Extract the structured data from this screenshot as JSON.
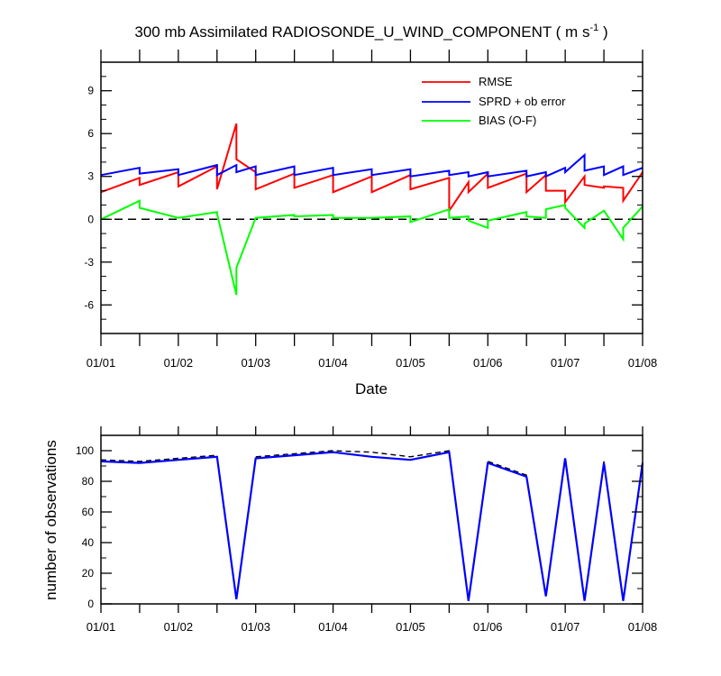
{
  "colors": {
    "rmse": "#ff0000",
    "sprd": "#0000ff",
    "bias": "#00ff00",
    "zero_line": "#000000",
    "obs_total": "#000000",
    "obs_assim": "#0000ff"
  },
  "chart_data": [
    {
      "type": "line",
      "title_main": "300 mb Assimilated RADIOSONDE_U_WIND_COMPONENT ( m s",
      "title_sup": "-1",
      "title_end": " )",
      "xlabel": "Date",
      "ylabel": "",
      "xlim": [
        0,
        7
      ],
      "ylim": [
        -8,
        11
      ],
      "yticks": [
        -6,
        -3,
        0,
        3,
        6,
        9
      ],
      "ytick_labels": [
        "-6",
        "-3",
        "0",
        "3",
        "6",
        "9"
      ],
      "xticks": [
        0,
        1,
        2,
        3,
        4,
        5,
        6,
        7
      ],
      "xtick_labels": [
        "01/01",
        "01/02",
        "01/03",
        "01/04",
        "01/05",
        "01/06",
        "01/07",
        "01/08"
      ],
      "grid": false,
      "legend": "top-right",
      "series": [
        {
          "name": "RMSE",
          "x": [
            0,
            0.5,
            0.5,
            1,
            1,
            1.5,
            1.5,
            1.75,
            1.75,
            2,
            2,
            2.5,
            2.5,
            3,
            3,
            3.5,
            3.5,
            4,
            4,
            4.5,
            4.5,
            4.75,
            4.75,
            5,
            5,
            5.5,
            5.5,
            5.75,
            5.75,
            6,
            6,
            6.25,
            6.25,
            6.5,
            6.5,
            6.75,
            6.75,
            7
          ],
          "y": [
            1.9,
            2.9,
            2.4,
            3.3,
            2.3,
            3.7,
            2.1,
            6.7,
            4.2,
            3.3,
            2.1,
            3.2,
            2.2,
            3.1,
            1.9,
            3.0,
            1.9,
            3.1,
            2.1,
            2.9,
            0.6,
            2.6,
            1.9,
            3.2,
            2.2,
            3.2,
            1.9,
            3.1,
            2.0,
            2.0,
            1.2,
            3.0,
            2.4,
            2.2,
            2.3,
            2.2,
            1.3,
            3.3
          ]
        },
        {
          "name": "SPRD + ob error",
          "x": [
            0,
            0.5,
            0.5,
            1,
            1,
            1.5,
            1.5,
            1.75,
            1.75,
            2,
            2,
            2.5,
            2.5,
            3,
            3,
            3.5,
            3.5,
            4,
            4,
            4.5,
            4.5,
            4.75,
            4.75,
            5,
            5,
            5.5,
            5.5,
            5.75,
            5.75,
            6,
            6,
            6.25,
            6.25,
            6.5,
            6.5,
            6.75,
            6.75,
            7
          ],
          "y": [
            3.1,
            3.6,
            3.2,
            3.5,
            3.1,
            3.8,
            3.1,
            3.8,
            3.3,
            3.7,
            3.1,
            3.7,
            3.1,
            3.6,
            3.1,
            3.5,
            3.1,
            3.5,
            3.0,
            3.4,
            3.1,
            3.3,
            3.0,
            3.3,
            3.0,
            3.4,
            3.0,
            3.3,
            3.0,
            3.6,
            3.3,
            4.5,
            3.4,
            3.7,
            3.1,
            3.7,
            3.1,
            3.6
          ]
        },
        {
          "name": "BIAS (O-F)",
          "x": [
            0,
            0.5,
            0.5,
            1,
            1,
            1.5,
            1.5,
            1.75,
            1.75,
            2,
            2,
            2.5,
            2.5,
            3,
            3,
            3.5,
            3.5,
            4,
            4,
            4.5,
            4.5,
            4.75,
            4.75,
            5,
            5,
            5.5,
            5.5,
            5.75,
            5.75,
            6,
            6,
            6.25,
            6.25,
            6.5,
            6.5,
            6.75,
            6.75,
            7
          ],
          "y": [
            0.0,
            1.3,
            0.8,
            0.1,
            0.1,
            0.5,
            0.4,
            -5.3,
            -3.4,
            0.1,
            0.1,
            0.3,
            0.2,
            0.3,
            0.1,
            0.1,
            0.1,
            0.2,
            -0.2,
            0.7,
            0.1,
            0.2,
            -0.1,
            -0.6,
            -0.1,
            0.5,
            0.2,
            0.1,
            0.7,
            1.0,
            0.8,
            -0.6,
            -0.3,
            0.6,
            0.6,
            -1.4,
            -0.6,
            0.9
          ]
        }
      ]
    },
    {
      "type": "line",
      "title": "",
      "xlabel": "",
      "ylabel": "number of observations",
      "xlim": [
        0,
        7
      ],
      "ylim": [
        0,
        110
      ],
      "yticks": [
        0,
        20,
        40,
        60,
        80,
        100
      ],
      "ytick_labels": [
        "0",
        "20",
        "40",
        "60",
        "80",
        "100"
      ],
      "xticks": [
        0,
        1,
        2,
        3,
        4,
        5,
        6,
        7
      ],
      "xtick_labels": [
        "01/01",
        "01/02",
        "01/03",
        "01/04",
        "01/05",
        "01/06",
        "01/07",
        "01/08"
      ],
      "grid": false,
      "series": [
        {
          "style": "dashed",
          "x": [
            0,
            0.5,
            1,
            1.5,
            1.75,
            2,
            2.5,
            3,
            3.5,
            4,
            4.5,
            4.75,
            5,
            5.5,
            5.75,
            6,
            6.25,
            6.5,
            6.75,
            7
          ],
          "y": [
            94,
            93,
            95,
            97,
            3,
            96,
            98,
            100,
            99,
            96,
            100,
            2,
            93,
            84,
            5,
            96,
            2,
            93,
            2,
            93
          ]
        },
        {
          "style": "solid",
          "x": [
            0,
            0.5,
            1,
            1.5,
            1.75,
            2,
            2.5,
            3,
            3.5,
            4,
            4.5,
            4.75,
            5,
            5.5,
            5.75,
            6,
            6.25,
            6.5,
            6.75,
            7
          ],
          "y": [
            93,
            92,
            94,
            96,
            3,
            95,
            97,
            99,
            96,
            94,
            99,
            2,
            92,
            83,
            5,
            95,
            2,
            92,
            2,
            92
          ]
        }
      ]
    }
  ]
}
